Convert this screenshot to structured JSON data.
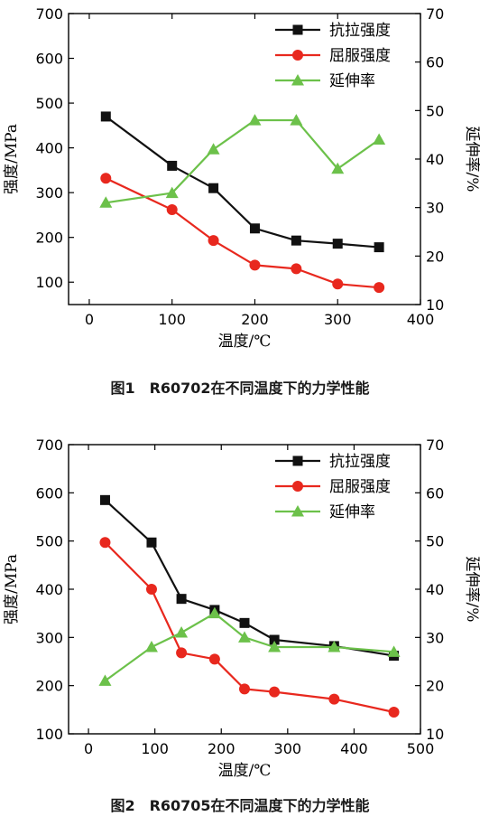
{
  "colors": {
    "tensile": "#111111",
    "yield": "#e8281e",
    "elongation": "#6cc14a"
  },
  "chart_data": [
    {
      "type": "line",
      "caption": "图1　R60702在不同温度下的力学性能",
      "xlabel": "温度/℃",
      "ylabel": "强度/MPa",
      "ylabel_right": "延伸率/%",
      "xlim": [
        -25,
        400
      ],
      "x_ticks": [
        0,
        100,
        200,
        300,
        400
      ],
      "ylim": [
        50,
        700
      ],
      "y_ticks": [
        100,
        200,
        300,
        400,
        500,
        600,
        700
      ],
      "ylim_right": [
        10,
        70
      ],
      "y_ticks_right": [
        10,
        20,
        30,
        40,
        50,
        60,
        70
      ],
      "legend_position": "top-right",
      "series": [
        {
          "name": "抗拉强度",
          "axis": "left",
          "marker": "square",
          "color": "#111111",
          "x": [
            20,
            100,
            150,
            200,
            250,
            300,
            350
          ],
          "y": [
            470,
            360,
            310,
            220,
            193,
            186,
            178
          ]
        },
        {
          "name": "屈服强度",
          "axis": "left",
          "marker": "circle",
          "color": "#e8281e",
          "x": [
            20,
            100,
            150,
            200,
            250,
            300,
            350
          ],
          "y": [
            332,
            262,
            193,
            138,
            130,
            96,
            88
          ]
        },
        {
          "name": "延伸率",
          "axis": "right",
          "marker": "triangle",
          "color": "#6cc14a",
          "x": [
            20,
            100,
            150,
            200,
            250,
            300,
            350
          ],
          "y": [
            31,
            33,
            42,
            48,
            48,
            38,
            44
          ]
        }
      ]
    },
    {
      "type": "line",
      "caption": "图2　R60705在不同温度下的力学性能",
      "xlabel": "温度/℃",
      "ylabel": "强度/MPa",
      "ylabel_right": "延伸率/%",
      "xlim": [
        -30,
        500
      ],
      "x_ticks": [
        0,
        100,
        200,
        300,
        400,
        500
      ],
      "ylim": [
        100,
        700
      ],
      "y_ticks": [
        100,
        200,
        300,
        400,
        500,
        600,
        700
      ],
      "ylim_right": [
        10,
        70
      ],
      "y_ticks_right": [
        10,
        20,
        30,
        40,
        50,
        60,
        70
      ],
      "legend_position": "top-right",
      "series": [
        {
          "name": "抗拉强度",
          "axis": "left",
          "marker": "square",
          "color": "#111111",
          "x": [
            25,
            95,
            140,
            190,
            235,
            280,
            370,
            460
          ],
          "y": [
            585,
            497,
            380,
            357,
            330,
            295,
            282,
            262
          ]
        },
        {
          "name": "屈服强度",
          "axis": "left",
          "marker": "circle",
          "color": "#e8281e",
          "x": [
            25,
            95,
            140,
            190,
            235,
            280,
            370,
            460
          ],
          "y": [
            497,
            400,
            268,
            255,
            193,
            187,
            172,
            145
          ]
        },
        {
          "name": "延伸率",
          "axis": "right",
          "marker": "triangle",
          "color": "#6cc14a",
          "x": [
            25,
            95,
            140,
            190,
            235,
            280,
            370,
            460
          ],
          "y": [
            21,
            28,
            31,
            35,
            30,
            28,
            28,
            27
          ]
        }
      ]
    }
  ]
}
